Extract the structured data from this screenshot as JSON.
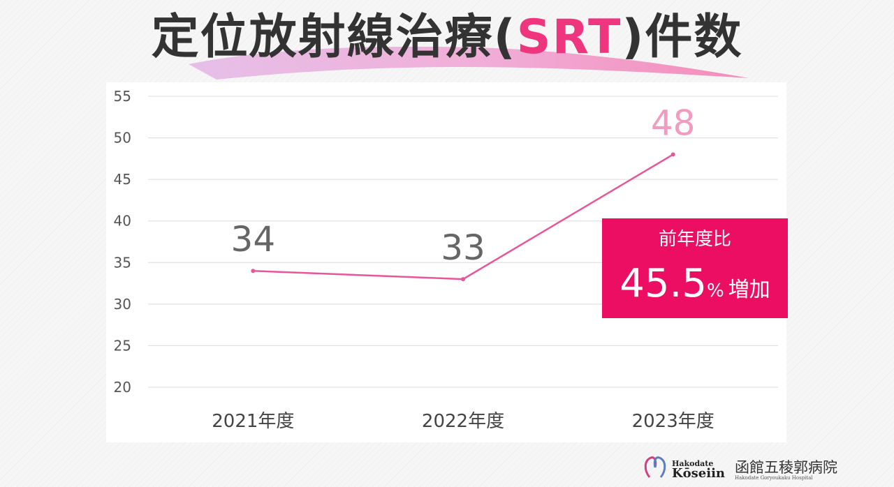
{
  "title": {
    "before": "定位放射線治療(",
    "highlight": "SRT",
    "after": ")件数"
  },
  "chart_data": {
    "type": "line",
    "categories": [
      "2021年度",
      "2022年度",
      "2023年度"
    ],
    "values": [
      34,
      33,
      48
    ],
    "data_labels": [
      "34",
      "33",
      "48"
    ],
    "ylim": [
      20,
      55
    ],
    "yticks": [
      "20",
      "25",
      "30",
      "35",
      "40",
      "45",
      "50",
      "55"
    ],
    "grid": true,
    "colors": {
      "line": "#e8559a",
      "label_default": "#666666",
      "label_highlight": "#f29ac0",
      "axis_text": "#555555",
      "grid": "#dcdcdc"
    }
  },
  "callout": {
    "label": "前年度比",
    "value": "45.5",
    "percent": "%",
    "unit": "増加",
    "color": "#ec0e63"
  },
  "logo": {
    "en_line1": "Hakodate",
    "en_line2": "Kōseiin",
    "jp": "函館五稜郭病院",
    "sub": "Hakodate Goryoukaku Hospital"
  }
}
